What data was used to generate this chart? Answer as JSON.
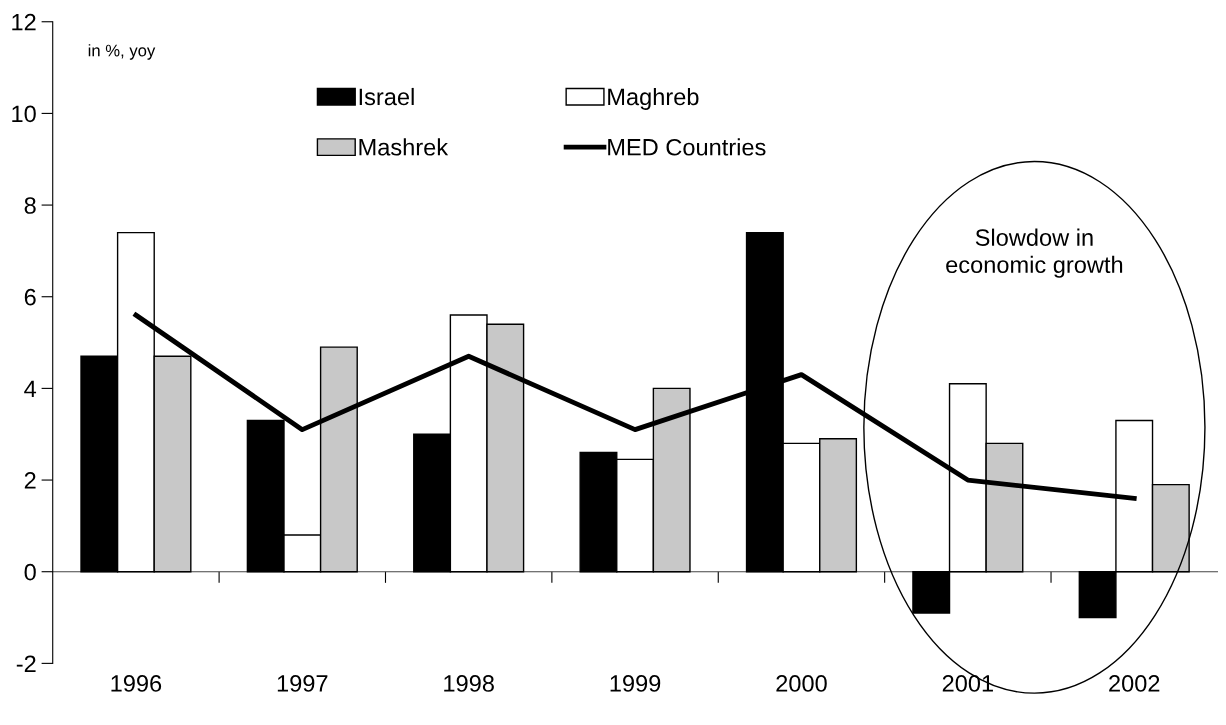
{
  "chart_data": {
    "type": "bar",
    "ylabel": "in %, yoy",
    "categories": [
      "1996",
      "1997",
      "1998",
      "1999",
      "2000",
      "2001",
      "2002"
    ],
    "series": [
      {
        "name": "Israel",
        "color": "#000000",
        "values": [
          4.7,
          3.3,
          3.0,
          2.6,
          7.4,
          -0.9,
          -1.0
        ]
      },
      {
        "name": "Maghreb",
        "color": "#ffffff",
        "values": [
          7.4,
          0.8,
          5.6,
          2.45,
          2.8,
          4.1,
          3.3
        ]
      },
      {
        "name": "Mashrek",
        "color": "#c8c8c8",
        "values": [
          4.7,
          4.9,
          5.4,
          4.0,
          2.9,
          2.8,
          1.9
        ]
      },
      {
        "name": "MED Countries",
        "type": "line",
        "color": "#000000",
        "values": [
          5.6,
          3.1,
          4.7,
          3.1,
          4.3,
          2.0,
          1.6
        ]
      }
    ],
    "ylim": [
      -2,
      12
    ],
    "yticks": [
      -2,
      0,
      2,
      4,
      6,
      8,
      10,
      12
    ],
    "annotations": [
      "Slowdow in\neconomic growth"
    ],
    "legend": "top",
    "marker": "none",
    "line_style": "solid"
  }
}
